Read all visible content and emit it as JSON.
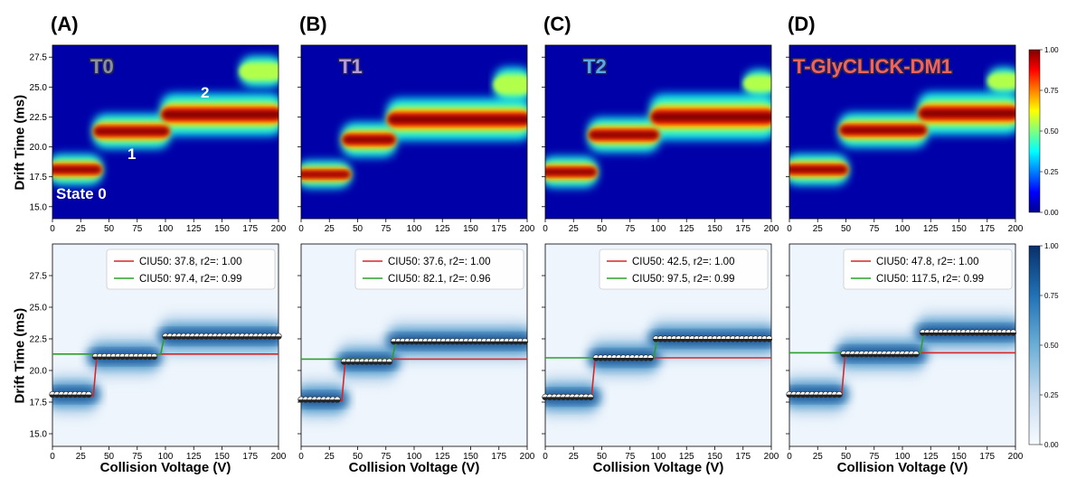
{
  "panel_labels": [
    "(A)",
    "(B)",
    "(C)",
    "(D)"
  ],
  "panel_titles": [
    {
      "text": "T0",
      "color": "#8a8f9c"
    },
    {
      "text": "T1",
      "color": "#b99ad9"
    },
    {
      "text": "T2",
      "color": "#5aa7e8"
    },
    {
      "text": "T-GlyCLICK-DM1",
      "color": "#f0645a"
    }
  ],
  "state_annotations": [
    "State 0",
    "1",
    "2"
  ],
  "axis": {
    "ylabel": "Drift Time (ms)",
    "xlabel": "Collision Voltage (V)"
  },
  "chart_data": [
    {
      "type": "heatmap",
      "row": "top",
      "colormap": "jet",
      "colorbar_ticks": [
        "1.00",
        "0.75",
        "0.50",
        "0.25",
        "0.00"
      ],
      "x_ticks": [
        "0",
        "25",
        "50",
        "75",
        "100",
        "125",
        "150",
        "175",
        "200"
      ],
      "y_ticks": [
        "27.5",
        "25.0",
        "22.5",
        "20.0",
        "17.5",
        "15.0"
      ],
      "xlim": [
        0,
        200
      ],
      "ylim": [
        14,
        28.5
      ],
      "panels": [
        {
          "id": "T0",
          "features": [
            {
              "v0": 0,
              "v1": 40,
              "dt": 18.1,
              "w": 0.8
            },
            {
              "v0": 40,
              "v1": 100,
              "dt": 21.3,
              "w": 0.9
            },
            {
              "v0": 100,
              "v1": 200,
              "dt": 22.7,
              "w": 1.1
            },
            {
              "v0": 170,
              "v1": 200,
              "dt": 26.3,
              "w": 0.8
            }
          ]
        },
        {
          "id": "T1",
          "features": [
            {
              "v0": 0,
              "v1": 40,
              "dt": 17.7,
              "w": 0.7
            },
            {
              "v0": 40,
              "v1": 80,
              "dt": 20.6,
              "w": 0.9
            },
            {
              "v0": 80,
              "v1": 200,
              "dt": 22.3,
              "w": 1.1
            },
            {
              "v0": 175,
              "v1": 200,
              "dt": 25.2,
              "w": 0.9
            }
          ]
        },
        {
          "id": "T2",
          "features": [
            {
              "v0": 0,
              "v1": 42,
              "dt": 17.9,
              "w": 0.8
            },
            {
              "v0": 42,
              "v1": 97,
              "dt": 21.0,
              "w": 0.9
            },
            {
              "v0": 97,
              "v1": 200,
              "dt": 22.5,
              "w": 1.2
            },
            {
              "v0": 180,
              "v1": 200,
              "dt": 25.3,
              "w": 0.7
            }
          ]
        },
        {
          "id": "T-GlyCLICK-DM1",
          "features": [
            {
              "v0": 0,
              "v1": 48,
              "dt": 18.1,
              "w": 0.8
            },
            {
              "v0": 48,
              "v1": 118,
              "dt": 21.4,
              "w": 0.9
            },
            {
              "v0": 118,
              "v1": 200,
              "dt": 22.8,
              "w": 1.1
            },
            {
              "v0": 180,
              "v1": 200,
              "dt": 25.5,
              "w": 0.7
            }
          ]
        }
      ]
    },
    {
      "type": "heatmap",
      "row": "bottom",
      "colormap": "blues",
      "colorbar_ticks": [
        "1.00",
        "0.75",
        "0.50",
        "0.25",
        "0.00"
      ],
      "x_ticks": [
        "0",
        "25",
        "50",
        "75",
        "100",
        "125",
        "150",
        "175",
        "200"
      ],
      "y_ticks": [
        "27.5",
        "25.0",
        "22.5",
        "20.0",
        "17.5",
        "15.0"
      ],
      "xlim": [
        0,
        200
      ],
      "ylim": [
        14,
        30
      ],
      "panels": [
        {
          "id": "T0",
          "legend": [
            "CIU50: 37.8, r2=: 1.00",
            "CIU50: 97.4, r2=: 0.99"
          ],
          "fits": [
            {
              "ciu50": 37.8,
              "low": 18.0,
              "high": 21.3,
              "color": "#d62728"
            },
            {
              "ciu50": 97.4,
              "low": 21.3,
              "high": 22.7,
              "color": "#2ca02c"
            }
          ],
          "points": [
            {
              "v0": 0,
              "v1": 35,
              "dt": 18.1
            },
            {
              "v0": 38,
              "v1": 90,
              "dt": 21.1
            },
            {
              "v0": 100,
              "v1": 200,
              "dt": 22.7
            }
          ]
        },
        {
          "id": "T1",
          "legend": [
            "CIU50: 37.6, r2=: 1.00",
            "CIU50: 82.1, r2=: 0.96"
          ],
          "fits": [
            {
              "ciu50": 37.6,
              "low": 17.6,
              "high": 20.9,
              "color": "#d62728"
            },
            {
              "ciu50": 82.1,
              "low": 20.9,
              "high": 22.2,
              "color": "#2ca02c"
            }
          ],
          "points": [
            {
              "v0": 0,
              "v1": 35,
              "dt": 17.7
            },
            {
              "v0": 38,
              "v1": 80,
              "dt": 20.7
            },
            {
              "v0": 82,
              "v1": 200,
              "dt": 22.3
            }
          ]
        },
        {
          "id": "T2",
          "legend": [
            "CIU50: 42.5, r2=: 1.00",
            "CIU50: 97.5, r2=: 0.99"
          ],
          "fits": [
            {
              "ciu50": 42.5,
              "low": 17.9,
              "high": 21.0,
              "color": "#d62728"
            },
            {
              "ciu50": 97.5,
              "low": 21.0,
              "high": 22.5,
              "color": "#2ca02c"
            }
          ],
          "points": [
            {
              "v0": 0,
              "v1": 42,
              "dt": 17.9
            },
            {
              "v0": 45,
              "v1": 95,
              "dt": 21.0
            },
            {
              "v0": 98,
              "v1": 200,
              "dt": 22.5
            }
          ]
        },
        {
          "id": "T-GlyCLICK-DM1",
          "legend": [
            "CIU50: 47.8, r2=: 1.00",
            "CIU50: 117.5, r2=: 0.99"
          ],
          "fits": [
            {
              "ciu50": 47.8,
              "low": 18.0,
              "high": 21.4,
              "color": "#d62728"
            },
            {
              "ciu50": 117.5,
              "low": 21.4,
              "high": 23.0,
              "color": "#2ca02c"
            }
          ],
          "points": [
            {
              "v0": 0,
              "v1": 45,
              "dt": 18.1
            },
            {
              "v0": 48,
              "v1": 115,
              "dt": 21.3
            },
            {
              "v0": 118,
              "v1": 200,
              "dt": 23.0
            }
          ]
        }
      ]
    }
  ]
}
